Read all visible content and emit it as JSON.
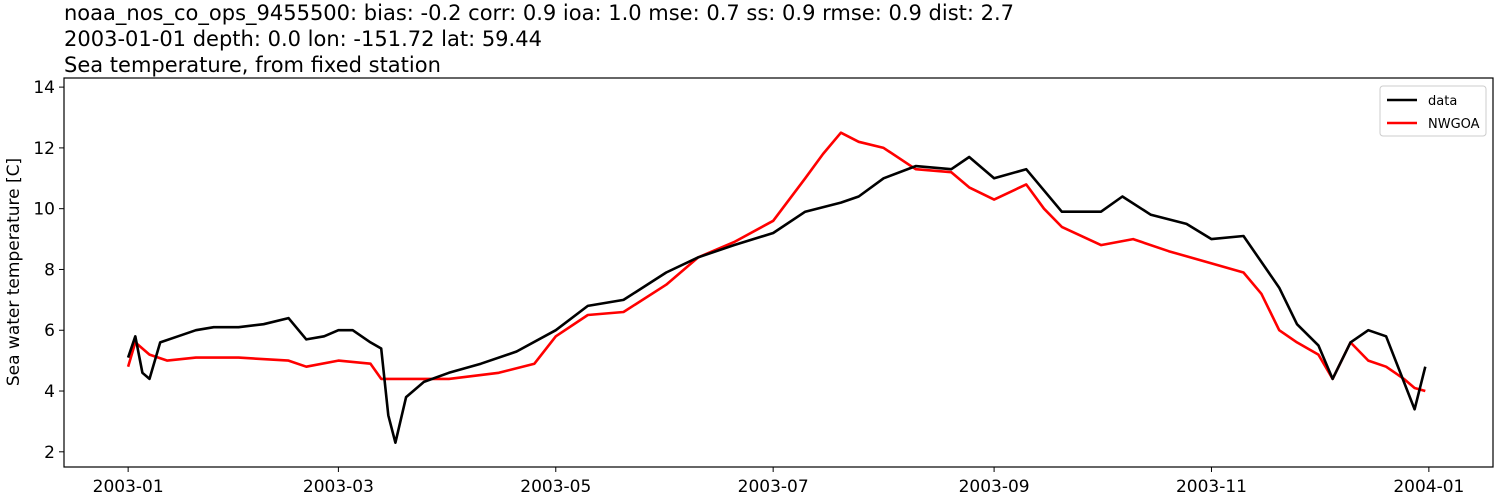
{
  "header": {
    "line1": "noaa_nos_co_ops_9455500: bias: -0.2  corr: 0.9  ioa: 1.0  mse: 0.7  ss: 0.9  rmse: 0.9  dist: 2.7",
    "line2": "2003-01-01 depth: 0.0 lon: -151.72 lat: 59.44",
    "line3": "Sea temperature, from fixed station"
  },
  "chart_data": {
    "type": "line",
    "title": "Sea temperature, from fixed station",
    "xlabel": "",
    "ylabel": "Sea water temperature [C]",
    "ylim": [
      1.5,
      14.3
    ],
    "xlim": [
      "2002-12-14",
      "2004-01-19"
    ],
    "x_ticks": [
      "2003-01",
      "2003-03",
      "2003-05",
      "2003-07",
      "2003-09",
      "2003-11",
      "2004-01"
    ],
    "y_ticks": [
      2,
      4,
      6,
      8,
      10,
      12,
      14
    ],
    "grid": false,
    "legend_position": "top-right",
    "series": [
      {
        "name": "data",
        "color": "#000000",
        "x": [
          "2003-01-01",
          "2003-01-03",
          "2003-01-05",
          "2003-01-07",
          "2003-01-10",
          "2003-01-15",
          "2003-01-20",
          "2003-01-25",
          "2003-02-01",
          "2003-02-08",
          "2003-02-15",
          "2003-02-20",
          "2003-02-25",
          "2003-03-01",
          "2003-03-05",
          "2003-03-10",
          "2003-03-13",
          "2003-03-15",
          "2003-03-17",
          "2003-03-20",
          "2003-03-25",
          "2003-04-01",
          "2003-04-10",
          "2003-04-20",
          "2003-05-01",
          "2003-05-10",
          "2003-05-20",
          "2003-06-01",
          "2003-06-10",
          "2003-06-20",
          "2003-07-01",
          "2003-07-10",
          "2003-07-20",
          "2003-07-25",
          "2003-08-01",
          "2003-08-10",
          "2003-08-20",
          "2003-08-25",
          "2003-09-01",
          "2003-09-10",
          "2003-09-20",
          "2003-10-01",
          "2003-10-07",
          "2003-10-15",
          "2003-10-25",
          "2003-11-01",
          "2003-11-10",
          "2003-11-20",
          "2003-11-25",
          "2003-12-01",
          "2003-12-05",
          "2003-12-10",
          "2003-12-15",
          "2003-12-20",
          "2003-12-25",
          "2003-12-28",
          "2003-12-31"
        ],
        "values": [
          5.1,
          5.8,
          4.6,
          4.4,
          5.6,
          5.8,
          6.0,
          6.1,
          6.1,
          6.2,
          6.4,
          5.7,
          5.8,
          6.0,
          6.0,
          5.6,
          5.4,
          3.2,
          2.3,
          3.8,
          4.3,
          4.6,
          4.9,
          5.3,
          6.0,
          6.8,
          7.0,
          7.9,
          8.4,
          8.8,
          9.2,
          9.9,
          10.2,
          10.4,
          11.0,
          11.4,
          11.3,
          11.7,
          11.0,
          11.3,
          9.9,
          9.9,
          10.4,
          9.8,
          9.5,
          9.0,
          9.1,
          7.4,
          6.2,
          5.5,
          4.4,
          5.6,
          6.0,
          5.8,
          4.3,
          3.4,
          4.8
        ]
      },
      {
        "name": "NWGOA",
        "color": "#ff0000",
        "x": [
          "2003-01-01",
          "2003-01-03",
          "2003-01-07",
          "2003-01-12",
          "2003-01-20",
          "2003-02-01",
          "2003-02-15",
          "2003-02-20",
          "2003-03-01",
          "2003-03-10",
          "2003-03-13",
          "2003-03-20",
          "2003-04-01",
          "2003-04-15",
          "2003-04-25",
          "2003-05-01",
          "2003-05-10",
          "2003-05-20",
          "2003-06-01",
          "2003-06-10",
          "2003-06-20",
          "2003-07-01",
          "2003-07-10",
          "2003-07-15",
          "2003-07-20",
          "2003-07-25",
          "2003-08-01",
          "2003-08-10",
          "2003-08-20",
          "2003-08-25",
          "2003-09-01",
          "2003-09-10",
          "2003-09-15",
          "2003-09-20",
          "2003-10-01",
          "2003-10-10",
          "2003-10-20",
          "2003-11-01",
          "2003-11-10",
          "2003-11-15",
          "2003-11-20",
          "2003-11-25",
          "2003-12-01",
          "2003-12-05",
          "2003-12-10",
          "2003-12-15",
          "2003-12-20",
          "2003-12-25",
          "2003-12-28",
          "2003-12-31"
        ],
        "values": [
          4.8,
          5.6,
          5.2,
          5.0,
          5.1,
          5.1,
          5.0,
          4.8,
          5.0,
          4.9,
          4.4,
          4.4,
          4.4,
          4.6,
          4.9,
          5.8,
          6.5,
          6.6,
          7.5,
          8.4,
          8.9,
          9.6,
          11.0,
          11.8,
          12.5,
          12.2,
          12.0,
          11.3,
          11.2,
          10.7,
          10.3,
          10.8,
          10.0,
          9.4,
          8.8,
          9.0,
          8.6,
          8.2,
          7.9,
          7.2,
          6.0,
          5.6,
          5.2,
          4.4,
          5.6,
          5.0,
          4.8,
          4.4,
          4.1,
          4.0
        ]
      }
    ]
  }
}
